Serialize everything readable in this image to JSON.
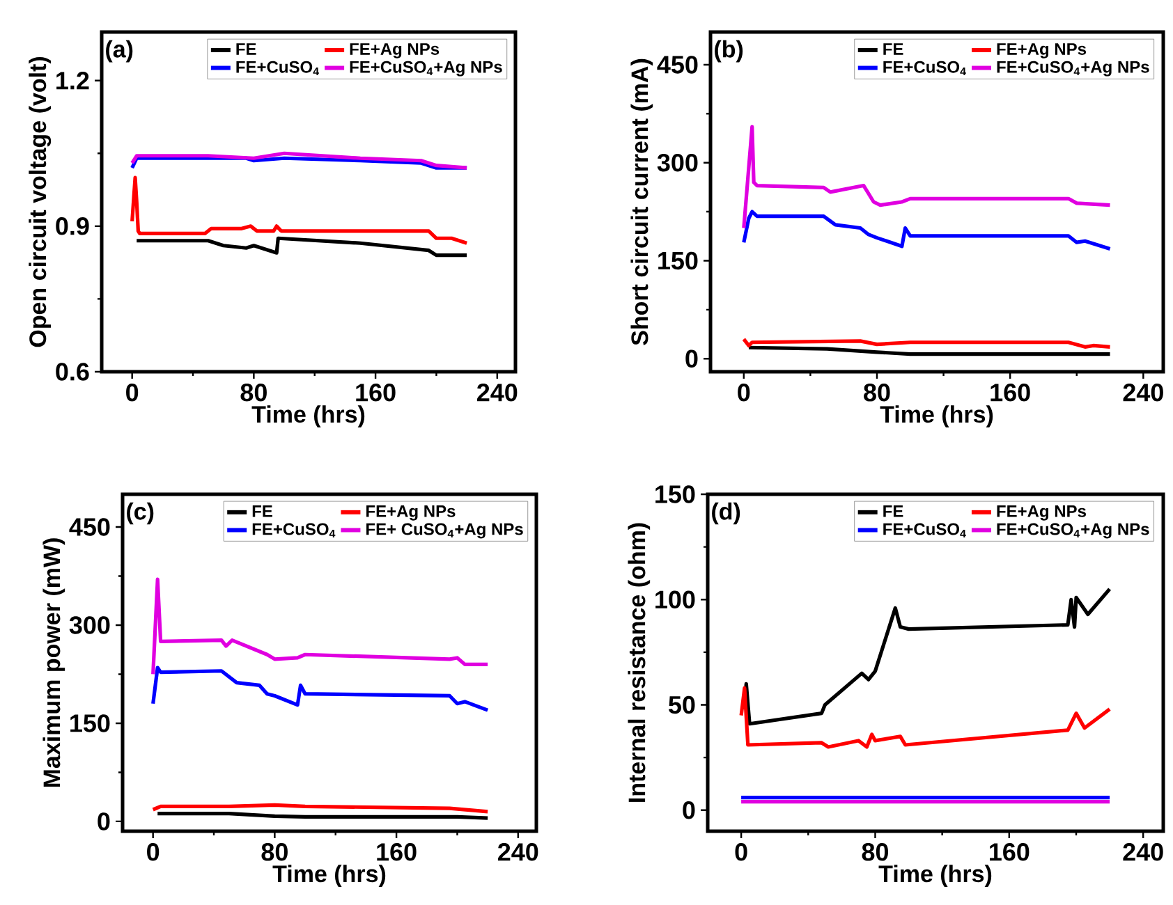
{
  "chart_data": [
    {
      "type": "line",
      "title": "(a)",
      "xlabel": "Time (hrs)",
      "ylabel": "Open circuit voltage (volt)",
      "xlim": [
        -20,
        252
      ],
      "ylim": [
        0.6,
        1.3
      ],
      "xticks": [
        0,
        80,
        160,
        240
      ],
      "yticks": [
        0.6,
        0.9,
        1.2
      ],
      "legend": "top right",
      "series": [
        {
          "name": "FE",
          "color": "#000000",
          "x": [
            3,
            5,
            50,
            60,
            75,
            80,
            95,
            96,
            150,
            195,
            200,
            220
          ],
          "values": [
            0.87,
            0.87,
            0.87,
            0.86,
            0.855,
            0.86,
            0.845,
            0.875,
            0.865,
            0.85,
            0.84,
            0.84
          ]
        },
        {
          "name": "FE+Ag NPs",
          "color": "#ff0000",
          "x": [
            0,
            2,
            3,
            4,
            5,
            48,
            52,
            72,
            78,
            82,
            93,
            95,
            98,
            195,
            200,
            210,
            220
          ],
          "values": [
            0.91,
            1.0,
            0.95,
            0.89,
            0.885,
            0.885,
            0.895,
            0.895,
            0.9,
            0.89,
            0.89,
            0.9,
            0.89,
            0.89,
            0.875,
            0.875,
            0.865
          ]
        },
        {
          "name": "FE+CuSO$_{4}$",
          "color": "#0000ff",
          "x": [
            0,
            3,
            75,
            80,
            100,
            150,
            190,
            200,
            220
          ],
          "values": [
            1.02,
            1.04,
            1.04,
            1.035,
            1.04,
            1.035,
            1.03,
            1.02,
            1.02
          ]
        },
        {
          "name": "FE+CuSO$_{4}$+Ag NPs",
          "color": "#e000e0",
          "x": [
            0,
            3,
            50,
            80,
            100,
            150,
            190,
            200,
            220
          ],
          "values": [
            1.03,
            1.045,
            1.045,
            1.04,
            1.05,
            1.04,
            1.035,
            1.025,
            1.02
          ]
        }
      ]
    },
    {
      "type": "line",
      "title": "(b)",
      "xlabel": "Time (hrs)",
      "ylabel": "Short circuit current (mA)",
      "xlim": [
        -20,
        252
      ],
      "ylim": [
        -20,
        500
      ],
      "xticks": [
        0,
        80,
        160,
        240
      ],
      "yticks": [
        0,
        150,
        300,
        450
      ],
      "legend": "top right",
      "series": [
        {
          "name": "FE",
          "color": "#000000",
          "x": [
            3,
            50,
            80,
            100,
            200,
            220
          ],
          "values": [
            17,
            15,
            10,
            7,
            7,
            7
          ]
        },
        {
          "name": "FE+Ag NPs",
          "color": "#ff0000",
          "x": [
            0,
            3,
            5,
            70,
            80,
            100,
            195,
            205,
            210,
            220
          ],
          "values": [
            30,
            20,
            25,
            27,
            22,
            25,
            25,
            18,
            20,
            18
          ]
        },
        {
          "name": "FE+CuSO$_{4}$",
          "color": "#0000ff",
          "x": [
            0,
            3,
            5,
            8,
            48,
            55,
            70,
            75,
            80,
            95,
            97,
            100,
            195,
            200,
            205,
            220
          ],
          "values": [
            178,
            215,
            225,
            218,
            218,
            205,
            200,
            190,
            185,
            172,
            200,
            188,
            188,
            178,
            180,
            168
          ]
        },
        {
          "name": "FE+CuSO$_{4}$+Ag NPs",
          "color": "#e000e0",
          "x": [
            0,
            5,
            6,
            8,
            48,
            52,
            72,
            78,
            82,
            95,
            100,
            195,
            200,
            220
          ],
          "values": [
            200,
            355,
            270,
            265,
            262,
            255,
            265,
            240,
            235,
            240,
            245,
            245,
            238,
            235
          ]
        }
      ]
    },
    {
      "type": "line",
      "title": "(c)",
      "xlabel": "Time (hrs)",
      "ylabel": "Maximum power (mW)",
      "xlim": [
        -20,
        252
      ],
      "ylim": [
        -15,
        500
      ],
      "xticks": [
        0,
        80,
        160,
        240
      ],
      "yticks": [
        0,
        150,
        300,
        450
      ],
      "legend": "top right",
      "series": [
        {
          "name": "FE",
          "color": "#000000",
          "x": [
            3,
            50,
            80,
            100,
            200,
            220
          ],
          "values": [
            12,
            12,
            8,
            7,
            7,
            5
          ]
        },
        {
          "name": "FE+Ag NPs",
          "color": "#ff0000",
          "x": [
            0,
            5,
            50,
            80,
            100,
            195,
            220
          ],
          "values": [
            18,
            23,
            23,
            25,
            23,
            20,
            15
          ]
        },
        {
          "name": "FE+CuSO$_{4}$",
          "color": "#0000ff",
          "x": [
            0,
            3,
            5,
            45,
            55,
            70,
            75,
            80,
            95,
            97,
            100,
            195,
            200,
            205,
            220
          ],
          "values": [
            180,
            235,
            228,
            230,
            212,
            208,
            195,
            192,
            178,
            208,
            195,
            192,
            180,
            183,
            170
          ]
        },
        {
          "name": "FE+ CuSO$_{4}$+Ag NPs",
          "color": "#e000e0",
          "x": [
            0,
            3,
            5,
            45,
            48,
            52,
            75,
            80,
            95,
            100,
            195,
            200,
            205,
            220
          ],
          "values": [
            225,
            370,
            275,
            277,
            268,
            277,
            255,
            248,
            250,
            255,
            248,
            250,
            240,
            240
          ]
        }
      ]
    },
    {
      "type": "line",
      "title": "(d)",
      "xlabel": "Time (hrs)",
      "ylabel": "Internal resistance (ohm)",
      "xlim": [
        -20,
        252
      ],
      "ylim": [
        -10,
        150
      ],
      "xticks": [
        0,
        80,
        160,
        240
      ],
      "yticks": [
        0,
        50,
        100,
        150
      ],
      "legend": "top right",
      "series": [
        {
          "name": "FE",
          "color": "#000000",
          "x": [
            2,
            3,
            5,
            48,
            50,
            72,
            76,
            80,
            92,
            95,
            100,
            195,
            197,
            199,
            200,
            207,
            220
          ],
          "values": [
            48,
            60,
            41,
            46,
            50,
            65,
            62,
            66,
            96,
            87,
            86,
            88,
            100,
            87,
            101,
            93,
            105
          ]
        },
        {
          "name": "FE+Ag NPs",
          "color": "#ff0000",
          "x": [
            0,
            2,
            4,
            48,
            52,
            70,
            75,
            78,
            80,
            95,
            98,
            195,
            200,
            205,
            220
          ],
          "values": [
            45,
            58,
            31,
            32,
            30,
            33,
            30,
            36,
            33,
            35,
            31,
            38,
            46,
            39,
            48
          ]
        },
        {
          "name": "FE+CuSO$_{4}$",
          "color": "#0000ff",
          "x": [
            0,
            100,
            220
          ],
          "values": [
            6,
            6,
            6
          ]
        },
        {
          "name": "FE+CuSO$_{4}$+Ag NPs",
          "color": "#e000e0",
          "x": [
            0,
            100,
            220
          ],
          "values": [
            4,
            4,
            4
          ]
        }
      ]
    }
  ]
}
